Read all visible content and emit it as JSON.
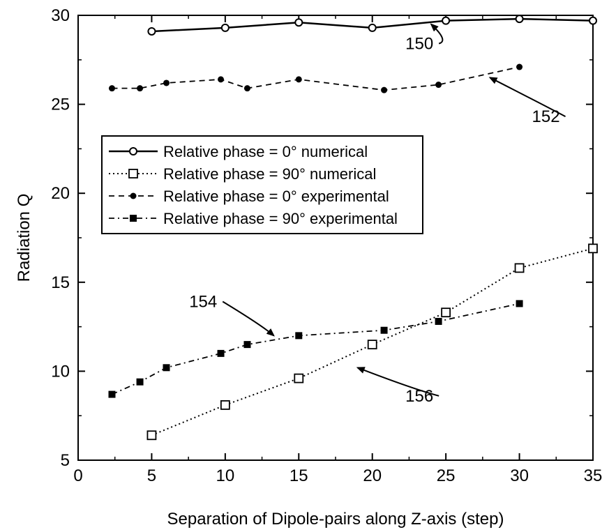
{
  "chart_data": {
    "type": "line",
    "title": "",
    "xlabel": "Separation of Dipole-pairs along Z-axis  (step)",
    "ylabel": "Radiation Q",
    "xlim": [
      0,
      35
    ],
    "ylim": [
      5,
      30
    ],
    "x_ticks": [
      0,
      5,
      10,
      15,
      20,
      25,
      30,
      35
    ],
    "y_ticks": [
      5,
      10,
      15,
      20,
      25,
      30
    ],
    "x_tick_labels": [
      "0",
      "5",
      "10",
      "15",
      "20",
      "25",
      "30",
      "35"
    ],
    "y_tick_labels": [
      "5",
      "10",
      "15",
      "20",
      "25",
      "30"
    ],
    "grid": false,
    "legend_position": "center-left",
    "series": [
      {
        "name": "Relative phase = 0° numerical",
        "line_style": "solid",
        "marker": "open-circle",
        "x": [
          5,
          10,
          15,
          20,
          25,
          30,
          35
        ],
        "y": [
          29.1,
          29.3,
          29.6,
          29.3,
          29.7,
          29.8,
          29.7
        ]
      },
      {
        "name": "Relative phase = 90° numerical",
        "line_style": "dotted",
        "marker": "open-square",
        "x": [
          5,
          10,
          15,
          20,
          25,
          30,
          35
        ],
        "y": [
          6.4,
          8.1,
          9.6,
          11.5,
          13.3,
          15.8,
          16.9
        ]
      },
      {
        "name": "Relative phase = 0° experimental",
        "line_style": "dashed",
        "marker": "filled-circle",
        "x": [
          2.3,
          4.2,
          6.0,
          9.7,
          11.5,
          15.0,
          20.8,
          24.5,
          30.0
        ],
        "y": [
          25.9,
          25.9,
          26.2,
          26.4,
          25.9,
          26.4,
          25.8,
          26.1,
          27.1
        ]
      },
      {
        "name": "Relative phase = 90° experimental",
        "line_style": "dash-dot",
        "marker": "filled-square",
        "x": [
          2.3,
          4.2,
          6.0,
          9.7,
          11.5,
          15.0,
          20.8,
          24.5,
          30.0
        ],
        "y": [
          8.7,
          9.4,
          10.2,
          11.0,
          11.5,
          12.0,
          12.3,
          12.8,
          13.8
        ]
      }
    ],
    "annotations": [
      {
        "text": "150",
        "x": 23.2,
        "y": 28.1,
        "arrow_to_x": 24.0,
        "arrow_to_y": 29.5
      },
      {
        "text": "152",
        "x": 31.8,
        "y": 24.0,
        "arrow_to_x": 28.0,
        "arrow_to_y": 26.5
      },
      {
        "text": "154",
        "x": 8.5,
        "y": 13.6,
        "arrow_to_x": 13.3,
        "arrow_to_y": 12.0
      },
      {
        "text": "156",
        "x": 23.2,
        "y": 8.3,
        "arrow_to_x": 19.0,
        "arrow_to_y": 10.2
      }
    ]
  }
}
